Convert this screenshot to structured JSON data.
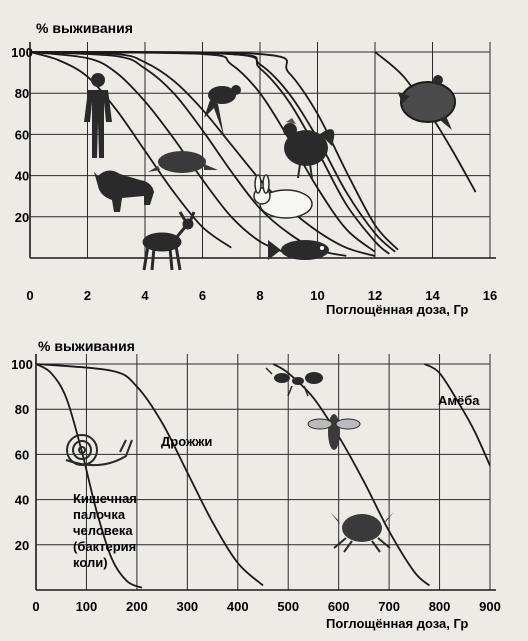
{
  "charts": [
    {
      "ylabel": "% выживания",
      "xlabel": "Поглощённая доза, Гр",
      "x_ticks": [
        "0",
        "2",
        "4",
        "6",
        "8",
        "10",
        "12",
        "14",
        "16"
      ],
      "y_ticks": [
        "100",
        "80",
        "60",
        "40",
        "20"
      ]
    },
    {
      "ylabel": "% выживания",
      "xlabel": "Поглощённая доза, Гр",
      "x_ticks": [
        "0",
        "100",
        "200",
        "300",
        "400",
        "500",
        "600",
        "700",
        "800",
        "900"
      ],
      "y_ticks": [
        "100",
        "80",
        "60",
        "40",
        "20"
      ],
      "annotations": {
        "yeast": "Дрожжи",
        "amoeba": "Амёба",
        "ecoli": [
          "Кишечная",
          "палочка",
          "человека",
          "(бактерия",
          "коли)"
        ]
      }
    }
  ],
  "chart_data": [
    {
      "type": "line",
      "xlabel": "Поглощённая доза, Гр",
      "ylabel": "% выживания",
      "xlim": [
        0,
        16
      ],
      "ylim": [
        0,
        100
      ],
      "grid": true,
      "series": [
        {
          "icon": "human-icon",
          "x": [
            0,
            1,
            2,
            3,
            4,
            5,
            6,
            7
          ],
          "y": [
            100,
            96,
            88,
            72,
            52,
            32,
            15,
            5
          ]
        },
        {
          "icon": "dog-icon",
          "x": [
            0,
            2,
            3,
            4,
            5,
            6,
            7,
            8,
            9
          ],
          "y": [
            100,
            97,
            90,
            76,
            58,
            38,
            20,
            8,
            2
          ]
        },
        {
          "icon": "beaver-icon",
          "x": [
            0,
            3,
            4,
            5,
            6,
            7,
            8,
            9,
            10,
            11
          ],
          "y": [
            100,
            98,
            92,
            80,
            62,
            42,
            24,
            12,
            4,
            1
          ]
        },
        {
          "icon": "deer-icon",
          "x": [
            0,
            3,
            4,
            5,
            6,
            7,
            8,
            9,
            10,
            11,
            12
          ],
          "y": [
            100,
            99,
            95,
            86,
            72,
            55,
            38,
            24,
            13,
            5,
            1
          ]
        },
        {
          "icon": "frog-icon",
          "x": [
            0,
            6,
            7,
            8,
            9,
            10,
            11,
            12
          ],
          "y": [
            100,
            99,
            94,
            80,
            58,
            34,
            14,
            3
          ]
        },
        {
          "icon": "rooster-icon",
          "x": [
            0,
            7,
            8,
            9,
            10,
            11,
            12,
            12.5
          ],
          "y": [
            100,
            99,
            92,
            76,
            52,
            26,
            8,
            2
          ]
        },
        {
          "icon": "rabbit-icon",
          "x": [
            0,
            7,
            8,
            9,
            10,
            11,
            12,
            12.7
          ],
          "y": [
            100,
            99,
            94,
            80,
            58,
            32,
            12,
            3
          ]
        },
        {
          "icon": "fish-icon",
          "x": [
            0,
            8,
            9,
            10,
            11,
            12,
            12.8
          ],
          "y": [
            100,
            99,
            90,
            70,
            42,
            16,
            4
          ]
        },
        {
          "icon": "turtle-icon",
          "x": [
            12,
            13,
            14,
            14.7,
            15.5
          ],
          "y": [
            100,
            88,
            68,
            52,
            32
          ]
        }
      ]
    },
    {
      "type": "line",
      "xlabel": "Поглощённая доза, Гр",
      "ylabel": "% выживания",
      "xlim": [
        0,
        900
      ],
      "ylim": [
        0,
        100
      ],
      "grid": true,
      "series": [
        {
          "name": "Кишечная палочка человека (бактерия коли)",
          "icon": "snail-icon",
          "x": [
            0,
            30,
            60,
            90,
            120,
            150,
            180,
            210
          ],
          "y": [
            100,
            96,
            85,
            62,
            35,
            14,
            4,
            1
          ]
        },
        {
          "name": "Дрожжи",
          "x": [
            0,
            150,
            200,
            250,
            300,
            350,
            400,
            450
          ],
          "y": [
            100,
            97,
            90,
            74,
            52,
            30,
            12,
            2
          ]
        },
        {
          "icon": "insect-icon",
          "x": [
            470,
            500,
            550,
            600,
            650,
            700,
            750,
            780
          ],
          "y": [
            100,
            96,
            85,
            68,
            48,
            26,
            8,
            2
          ]
        },
        {
          "name": "Амёба",
          "x": [
            770,
            800,
            840,
            870,
            900
          ],
          "y": [
            100,
            96,
            82,
            70,
            55
          ]
        }
      ]
    }
  ]
}
